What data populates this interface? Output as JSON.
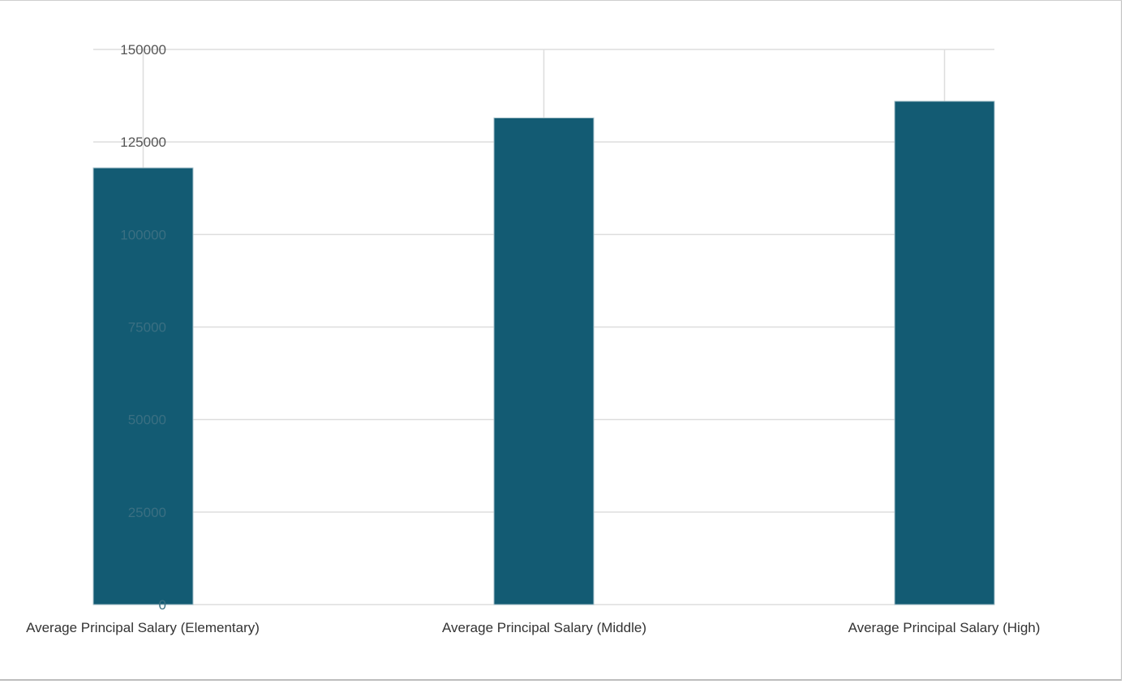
{
  "chart_data": {
    "type": "bar",
    "categories": [
      "Average Principal Salary (Elementary)",
      "Average Principal Salary (Middle)",
      "Average Principal Salary (High)"
    ],
    "values": [
      118000,
      131500,
      136000
    ],
    "yticks": [
      "0",
      "25000",
      "50000",
      "75000",
      "100000",
      "125000",
      "150000"
    ],
    "ylim": [
      0,
      150000
    ],
    "grid": true,
    "legend": "none",
    "colors": {
      "bar": "#135b73",
      "gridline": "#dddddd",
      "tick_label": "#555555",
      "category_label": "#333333"
    }
  }
}
